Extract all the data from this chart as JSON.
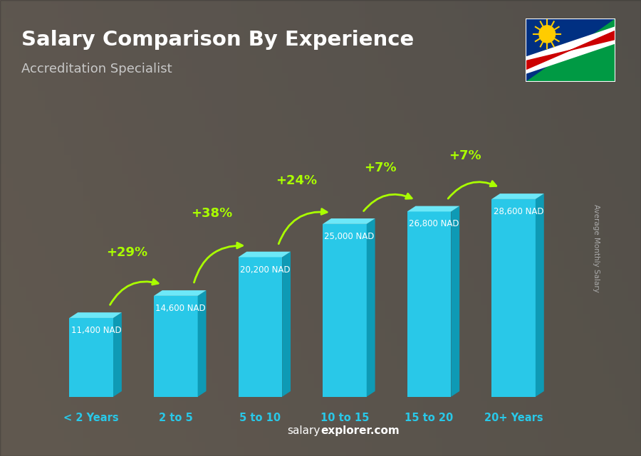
{
  "title": "Salary Comparison By Experience",
  "subtitle": "Accreditation Specialist",
  "ylabel": "Average Monthly Salary",
  "watermark": "salaryexplorer.com",
  "categories": [
    "< 2 Years",
    "2 to 5",
    "5 to 10",
    "10 to 15",
    "15 to 20",
    "20+ Years"
  ],
  "values": [
    11400,
    14600,
    20200,
    25000,
    26800,
    28600
  ],
  "value_labels": [
    "11,400 NAD",
    "14,600 NAD",
    "20,200 NAD",
    "25,000 NAD",
    "26,800 NAD",
    "28,600 NAD"
  ],
  "pct_labels": [
    null,
    "+29%",
    "+38%",
    "+24%",
    "+7%",
    "+7%"
  ],
  "front_color": "#29c8e8",
  "side_color": "#0e9ab5",
  "top_color": "#6de8f8",
  "bg_color": "#7a7a7a",
  "title_color": "#ffffff",
  "subtitle_color": "#cccccc",
  "label_color": "#ffffff",
  "pct_color": "#aaff00",
  "tick_color": "#29c8e8",
  "watermark_color": "#ffffff",
  "figsize": [
    9.0,
    6.41
  ],
  "dpi": 100
}
